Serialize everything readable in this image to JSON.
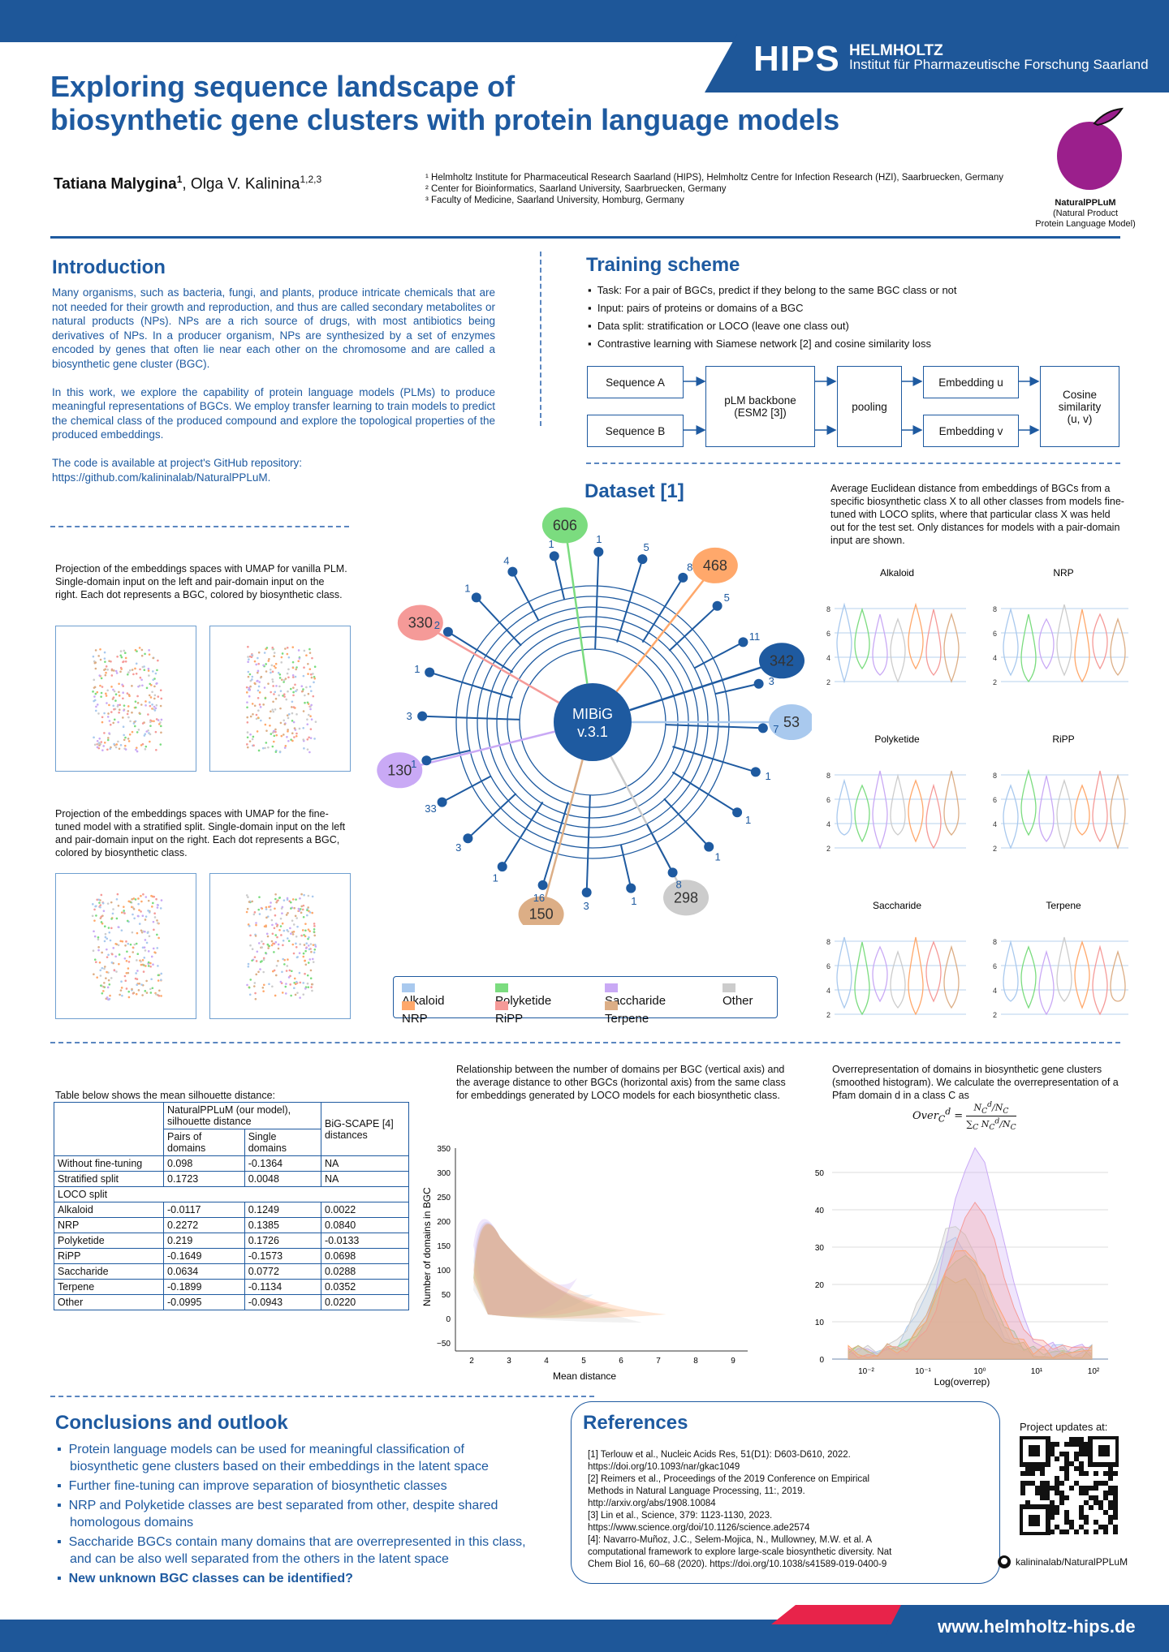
{
  "header": {
    "logo": "HIPS",
    "org_line1": "HELMHOLTZ",
    "org_line2": "Institut für Pharmazeutische Forschung Saarland"
  },
  "title_line1": "Exploring sequence landscape of",
  "title_line2": "biosynthetic gene clusters with protein language models",
  "authors": {
    "first": "Tatiana Malygina",
    "first_sup": "1",
    "rest": ", Olga V. Kalinina",
    "rest_sup": "1,2,3"
  },
  "affiliations": [
    "¹ Helmholtz Institute for Pharmaceutical Research Saarland (HIPS), Helmholtz Centre for Infection Research (HZI), Saarbruecken, Germany",
    "² Center for Bioinformatics, Saarland University, Saarbruecken, Germany",
    "³ Faculty of Medicine, Saarland University, Homburg, Germany"
  ],
  "logo": {
    "name": "NaturalPPLuM",
    "line1": "(Natural Product",
    "line2": "Protein Language Model)"
  },
  "intro": {
    "heading": "Introduction",
    "p1": "Many organisms, such as bacteria, fungi, and plants, produce intricate chemicals that are not needed for their growth and reproduction, and thus are called secondary metabolites or natural products (NPs). NPs are a rich source of drugs, with most antibiotics being derivatives of NPs. In a producer organism, NPs are synthesized by a set of enzymes encoded by genes that often lie near each other on the chromosome and are called a biosynthetic gene cluster (BGC).",
    "p2": "In this work, we explore the capability of protein language models (PLMs) to produce meaningful representations of BGCs. We employ transfer learning to train models to predict the chemical class of the produced compound and explore the topological properties of the produced embeddings.",
    "p3": "The code is available at project's GitHub repository:",
    "p4": "https://github.com/kalininalab/NaturalPPLuM."
  },
  "training": {
    "heading": "Training scheme",
    "bullets": [
      "Task: For a pair of BGCs, predict if they belong to the same BGC class or not",
      "Input: pairs of proteins or domains of a BGC",
      "Data split: stratification or LOCO (leave one class out)",
      "Contrastive learning with Siamese network [2] and cosine similarity loss"
    ],
    "boxes": {
      "seqA": "Sequence A",
      "seqB": "Sequence B",
      "plm1": "pLM backbone",
      "plm2": "(ESM2 [3])",
      "pool": "pooling",
      "embu": "Embedding u",
      "embv": "Embedding v",
      "cos1": "Cosine",
      "cos2": "similarity",
      "cos3": "(u, v)"
    }
  },
  "dataset": {
    "heading": "Dataset [1]",
    "center1": "MIBiG",
    "center2": "v.3.1",
    "petals": [
      {
        "label": "606",
        "color": "#7bdc7f"
      },
      {
        "label": "468",
        "color": "#ffa86b"
      },
      {
        "label": "342",
        "color": "#1e5aa0"
      },
      {
        "label": "53",
        "color": "#a9c9ee"
      },
      {
        "label": "298",
        "color": "#cccccc"
      },
      {
        "label": "150",
        "color": "#dcae86"
      },
      {
        "label": "130",
        "color": "#c9a9f5"
      },
      {
        "label": "330",
        "color": "#f59a98"
      }
    ],
    "small": [
      "1",
      "5",
      "8",
      "5",
      "11",
      "3",
      "7",
      "1",
      "1",
      "1",
      "8",
      "1",
      "3",
      "16",
      "1",
      "3",
      "33",
      "1",
      "3",
      "1",
      "2",
      "1",
      "4",
      "1"
    ],
    "legend": [
      {
        "label": "Alkaloid",
        "color": "#a9c9ee"
      },
      {
        "label": "Polyketide",
        "color": "#7bdc7f"
      },
      {
        "label": "Saccharide",
        "color": "#c9a9f5"
      },
      {
        "label": "Other",
        "color": "#cccccc"
      },
      {
        "label": "NRP",
        "color": "#ffa86b"
      },
      {
        "label": "RiPP",
        "color": "#f59a98"
      },
      {
        "label": "Terpene",
        "color": "#dcae86"
      }
    ]
  },
  "umap": {
    "cap1": "Projection of the embeddings spaces with UMAP for vanilla PLM. Single-domain input on the left and pair-domain input on the right. Each dot represents a BGC, colored by biosynthetic class.",
    "cap2": "Projection of the embeddings spaces with UMAP for the fine-tuned model with a stratified split. Single-domain input on the left and pair-domain input on the right. Each dot represents a BGC, colored by biosynthetic class."
  },
  "violin": {
    "caption": "Average Euclidean distance from embeddings of BGCs from a specific biosynthetic class X to all other classes from models fine-tuned with LOCO splits, where that particular class X was held out for the test set. Only distances for models with a pair-domain input are shown.",
    "panels": [
      "Alkaloid",
      "NRP",
      "Polyketide",
      "RiPP",
      "Saccharide",
      "Terpene"
    ],
    "yticks": [
      "8",
      "6",
      "4",
      "2"
    ]
  },
  "table": {
    "caption": "Table below shows the mean silhouette distance:",
    "head1": "NaturalPPLuM (our model), silhouette distance",
    "head2": "BiG-SCAPE [4] distances",
    "sub1": "Pairs of domains",
    "sub2": "Single domains",
    "rows": [
      [
        "Without fine-tuning",
        "0.098",
        "-0.1364",
        "NA"
      ],
      [
        "Stratified split",
        "0.1723",
        "0.0048",
        "NA"
      ]
    ],
    "loco": "LOCO split",
    "locorows": [
      [
        "Alkaloid",
        "-0.0117",
        "0.1249",
        "0.0022"
      ],
      [
        "NRP",
        "0.2272",
        "0.1385",
        "0.0840"
      ],
      [
        "Polyketide",
        "0.219",
        "0.1726",
        "-0.0133"
      ],
      [
        "RiPP",
        "-0.1649",
        "-0.1573",
        "0.0698"
      ],
      [
        "Saccharide",
        "0.0634",
        "0.0772",
        "0.0288"
      ],
      [
        "Terpene",
        "-0.1899",
        "-0.1134",
        "0.0352"
      ],
      [
        "Other",
        "-0.0995",
        "-0.0943",
        "0.0220"
      ]
    ]
  },
  "kde": {
    "caption": "Relationship between the number of domains per BGC (vertical axis) and the average distance to other BGCs (horizontal axis) from the same class for embeddings generated by LOCO models for each biosynthetic class.",
    "ylabel": "Number of domains in BGC",
    "xlabel": "Mean distance",
    "yticks": [
      "350",
      "300",
      "250",
      "200",
      "150",
      "100",
      "50",
      "0",
      "−50"
    ],
    "xticks": [
      "2",
      "3",
      "4",
      "5",
      "6",
      "7",
      "8",
      "9"
    ]
  },
  "hist": {
    "caption": "Overrepresentation of domains in biosynthetic gene clusters (smoothed histogram). We calculate the overrepresentation of a Pfam domain d in a class C as",
    "yticks": [
      "50",
      "40",
      "30",
      "20",
      "10",
      "0"
    ],
    "xticks": [
      "10⁻²",
      "10⁻¹",
      "10⁰",
      "10¹",
      "10²"
    ],
    "xlabel": "Log(overrep)"
  },
  "conclusions": {
    "heading": "Conclusions and outlook",
    "bullets": [
      "Protein language models can be used for meaningful classification of biosynthetic gene clusters based on their embeddings in the latent space",
      "Further fine-tuning can improve separation of biosynthetic classes",
      "NRP and Polyketide classes are best separated from other, despite shared homologous domains",
      "Saccharide BGCs contain many domains that are overrepresented in this class, and can be also well separated from the others in the latent space"
    ],
    "bold": "New unknown BGC classes can be identified?"
  },
  "references": {
    "heading": "References",
    "items": [
      "[1]  Terlouw et al., Nucleic Acids Res, 51(D1): D603-D610, 2022. https://doi.org/10.1093/nar/gkac1049",
      "[2]  Reimers et al., Proceedings of the 2019 Conference on Empirical Methods in Natural Language Processing, 11:, 2019. http://arxiv.org/abs/1908.10084",
      "[3]  Lin et al., Science, 379: 1123-1130, 2023. https://www.science.org/doi/10.1126/science.ade2574",
      "[4]: Navarro-Muñoz, J.C., Selem-Mojica, N., Mullowney, M.W. et al. A computational framework to explore large-scale biosynthetic diversity. Nat Chem Biol 16, 60–68 (2020). https://doi.org/10.1038/s41589-019-0400-9"
    ]
  },
  "project": {
    "label": "Project updates at:",
    "github": "kalininalab/NaturalPPLuM"
  },
  "footer": {
    "url": "www.helmholtz-hips.de"
  }
}
